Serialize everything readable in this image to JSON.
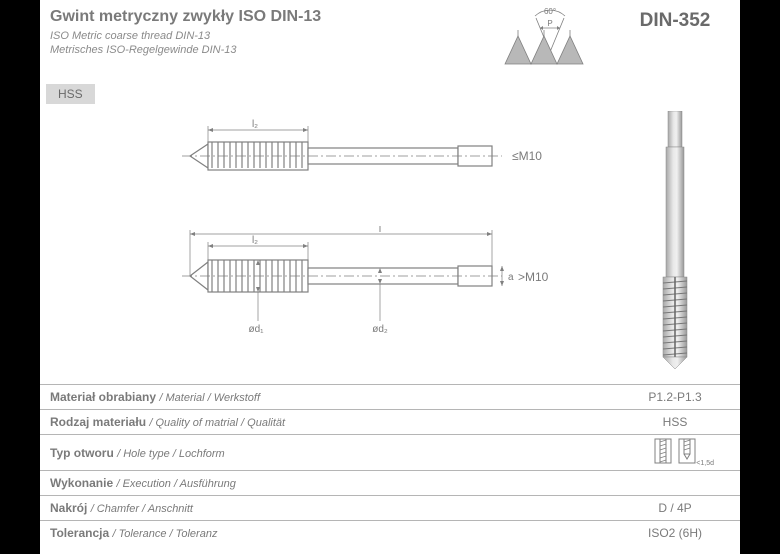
{
  "header": {
    "title_main": "Gwint metryczny zwykły ISO DIN-13",
    "title_sub1": "ISO Metric coarse thread DIN-13",
    "title_sub2": "Metrisches ISO-Regelgewinde DIN-13",
    "din_label": "DIN-352",
    "thread_angle": "60°",
    "thread_pitch": "P"
  },
  "hss_tag": "HSS",
  "drawing": {
    "label_le_m10": "≤M10",
    "label_gt_m10": ">M10",
    "dim_l2_top": "l₂",
    "dim_l2_bot": "l₂",
    "dim_l": "l",
    "dim_d1": "ød₁",
    "dim_d2": "ød₂",
    "dim_a": "a"
  },
  "specs": [
    {
      "label_main": "Materiał obrabiany",
      "label_sub": "/ Material / Werkstoff",
      "value": "P1.2-P1.3"
    },
    {
      "label_main": "Rodzaj materiału",
      "label_sub": "/ Quality of matrial / Qualität",
      "value": "HSS"
    },
    {
      "label_main": "Typ otworu",
      "label_sub": "/ Hole type / Lochform",
      "value": "",
      "hole_icons": true,
      "hole_label": "<1,5d"
    },
    {
      "label_main": "Wykonanie",
      "label_sub": "/ Execution / Ausführung",
      "value": ""
    },
    {
      "label_main": "Nakrój",
      "label_sub": "/ Chamfer / Anschnitt",
      "value": "D / 4P"
    },
    {
      "label_main": "Tolerancja",
      "label_sub": "/ Tolerance / Toleranz",
      "value": "ISO2 (6H)"
    }
  ],
  "colors": {
    "text": "#7a7a7a",
    "border": "#b5b5b5",
    "hss_bg": "#d8d8d8",
    "drawing_stroke": "#808080",
    "drawing_fill": "#b8b8b8"
  }
}
